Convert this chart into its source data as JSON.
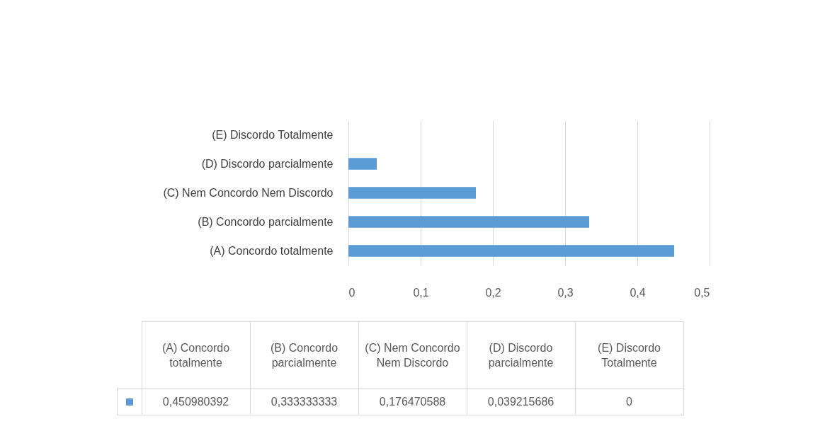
{
  "chart_data": {
    "type": "bar",
    "orientation": "horizontal",
    "categories": [
      "(E) Discordo Totalmente",
      "(D) Discordo parcialmente",
      "(C) Nem Concordo Nem Discordo",
      "(B) Concordo parcialmente",
      "(A) Concordo totalmente"
    ],
    "series": [
      {
        "color": "#5b9bd5",
        "values": [
          0,
          0.039215686,
          0.176470588,
          0.333333333,
          0.450980392
        ]
      }
    ],
    "value_labels": [
      "0",
      "0,039215686",
      "0,176470588",
      "0,333333333",
      "0,450980392"
    ],
    "xlim": [
      0,
      0.5
    ],
    "xticks": [
      0,
      {
        "value": 0.1,
        "label": "0,1"
      },
      {
        "value": 0.2,
        "label": "0,2"
      },
      {
        "value": 0.3,
        "label": "0,3"
      },
      {
        "value": 0.4,
        "label": "0,4"
      },
      {
        "value": 0.5,
        "label": "0,5"
      }
    ],
    "grid": "x"
  }
}
